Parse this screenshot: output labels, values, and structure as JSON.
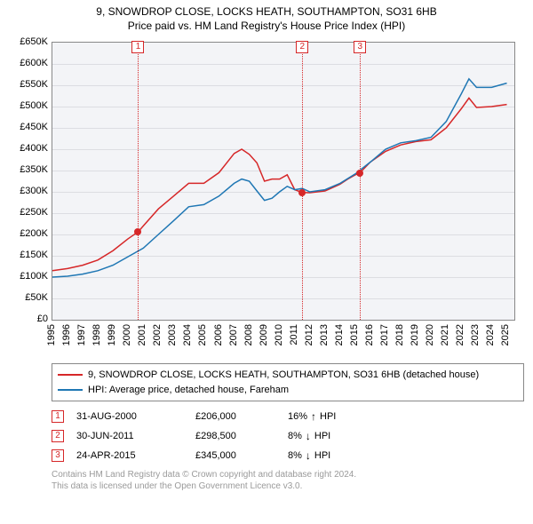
{
  "title": {
    "line1": "9, SNOWDROP CLOSE, LOCKS HEATH, SOUTHAMPTON, SO31 6HB",
    "line2": "Price paid vs. HM Land Registry's House Price Index (HPI)"
  },
  "chart": {
    "type": "line",
    "background_color": "#f3f4f7",
    "grid_color": "#dcdde2",
    "border_color": "#888888",
    "ylim": [
      0,
      650000
    ],
    "ytick_step": 50000,
    "ytick_labels": [
      "£0",
      "£50K",
      "£100K",
      "£150K",
      "£200K",
      "£250K",
      "£300K",
      "£350K",
      "£400K",
      "£450K",
      "£500K",
      "£550K",
      "£600K",
      "£650K"
    ],
    "xlim": [
      1995,
      2025.5
    ],
    "xtick_step": 1,
    "xtick_labels": [
      "1995",
      "1996",
      "1997",
      "1998",
      "1999",
      "2000",
      "2001",
      "2002",
      "2003",
      "2004",
      "2005",
      "2006",
      "2007",
      "2008",
      "2009",
      "2010",
      "2011",
      "2012",
      "2013",
      "2014",
      "2015",
      "2016",
      "2017",
      "2018",
      "2019",
      "2020",
      "2021",
      "2022",
      "2023",
      "2024",
      "2025"
    ],
    "label_fontsize": 11,
    "series": [
      {
        "name": "property",
        "color": "#d62728",
        "width": 1.5,
        "points": [
          [
            1995,
            115000
          ],
          [
            1996,
            120000
          ],
          [
            1997,
            128000
          ],
          [
            1998,
            140000
          ],
          [
            1999,
            162000
          ],
          [
            2000,
            190000
          ],
          [
            2000.66,
            206000
          ],
          [
            2001,
            220000
          ],
          [
            2002,
            260000
          ],
          [
            2003,
            290000
          ],
          [
            2004,
            320000
          ],
          [
            2005,
            320000
          ],
          [
            2006,
            345000
          ],
          [
            2007,
            390000
          ],
          [
            2007.5,
            400000
          ],
          [
            2008,
            388000
          ],
          [
            2008.5,
            368000
          ],
          [
            2009,
            325000
          ],
          [
            2009.5,
            330000
          ],
          [
            2010,
            330000
          ],
          [
            2010.5,
            340000
          ],
          [
            2011,
            305000
          ],
          [
            2011.5,
            298500
          ],
          [
            2012,
            298000
          ],
          [
            2013,
            302000
          ],
          [
            2014,
            318000
          ],
          [
            2014.5,
            330000
          ],
          [
            2015,
            340000
          ],
          [
            2015.31,
            345000
          ],
          [
            2016,
            370000
          ],
          [
            2017,
            395000
          ],
          [
            2018,
            410000
          ],
          [
            2019,
            418000
          ],
          [
            2020,
            422000
          ],
          [
            2021,
            450000
          ],
          [
            2022,
            495000
          ],
          [
            2022.5,
            520000
          ],
          [
            2023,
            498000
          ],
          [
            2024,
            500000
          ],
          [
            2025,
            505000
          ]
        ]
      },
      {
        "name": "hpi",
        "color": "#1f77b4",
        "width": 1.5,
        "points": [
          [
            1995,
            100000
          ],
          [
            1996,
            102000
          ],
          [
            1997,
            107000
          ],
          [
            1998,
            115000
          ],
          [
            1999,
            128000
          ],
          [
            2000,
            148000
          ],
          [
            2001,
            168000
          ],
          [
            2002,
            200000
          ],
          [
            2003,
            232000
          ],
          [
            2004,
            265000
          ],
          [
            2005,
            270000
          ],
          [
            2006,
            290000
          ],
          [
            2007,
            320000
          ],
          [
            2007.5,
            330000
          ],
          [
            2008,
            325000
          ],
          [
            2008.5,
            302000
          ],
          [
            2009,
            280000
          ],
          [
            2009.5,
            285000
          ],
          [
            2010,
            300000
          ],
          [
            2010.5,
            313000
          ],
          [
            2011,
            305000
          ],
          [
            2011.5,
            308000
          ],
          [
            2012,
            300000
          ],
          [
            2013,
            305000
          ],
          [
            2014,
            320000
          ],
          [
            2015,
            342000
          ],
          [
            2016,
            370000
          ],
          [
            2017,
            400000
          ],
          [
            2018,
            415000
          ],
          [
            2019,
            420000
          ],
          [
            2020,
            428000
          ],
          [
            2021,
            465000
          ],
          [
            2022,
            530000
          ],
          [
            2022.5,
            565000
          ],
          [
            2023,
            545000
          ],
          [
            2024,
            545000
          ],
          [
            2025,
            555000
          ]
        ]
      }
    ],
    "markers": [
      {
        "x": 2000.66,
        "y": 206000,
        "color": "#d62728"
      },
      {
        "x": 2011.5,
        "y": 298500,
        "color": "#d62728"
      },
      {
        "x": 2015.31,
        "y": 345000,
        "color": "#d62728"
      }
    ],
    "reference_lines": [
      {
        "id": "1",
        "x": 2000.66,
        "color": "#d62728"
      },
      {
        "id": "2",
        "x": 2011.5,
        "color": "#d62728"
      },
      {
        "id": "3",
        "x": 2015.31,
        "color": "#d62728"
      }
    ]
  },
  "legend": {
    "items": [
      {
        "color": "#d62728",
        "label": "9, SNOWDROP CLOSE, LOCKS HEATH, SOUTHAMPTON, SO31 6HB (detached house)"
      },
      {
        "color": "#1f77b4",
        "label": "HPI: Average price, detached house, Fareham"
      }
    ]
  },
  "events": [
    {
      "id": "1",
      "color": "#d62728",
      "date": "31-AUG-2000",
      "price": "£206,000",
      "diff_pct": "16%",
      "arrow": "↑",
      "diff_label": "HPI"
    },
    {
      "id": "2",
      "color": "#d62728",
      "date": "30-JUN-2011",
      "price": "£298,500",
      "diff_pct": "8%",
      "arrow": "↓",
      "diff_label": "HPI"
    },
    {
      "id": "3",
      "color": "#d62728",
      "date": "24-APR-2015",
      "price": "£345,000",
      "diff_pct": "8%",
      "arrow": "↓",
      "diff_label": "HPI"
    }
  ],
  "footer": {
    "line1": "Contains HM Land Registry data © Crown copyright and database right 2024.",
    "line2": "This data is licensed under the Open Government Licence v3.0."
  }
}
